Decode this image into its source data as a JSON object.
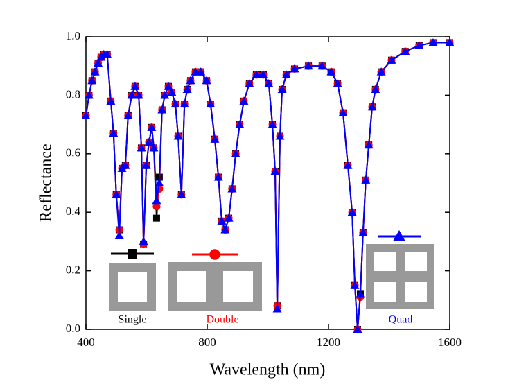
{
  "chart_data": {
    "type": "line",
    "xlabel": "Wavelength (nm)",
    "ylabel": "Reflectance",
    "x": [
      400,
      410,
      420,
      430,
      440,
      450,
      459,
      470,
      482,
      491,
      500,
      510,
      519,
      530,
      539,
      551,
      562,
      574,
      583,
      590,
      599,
      608,
      617,
      624,
      633,
      642,
      651,
      660,
      672,
      683,
      695,
      704,
      715,
      725,
      734,
      745,
      761,
      779,
      798,
      811,
      825,
      837,
      848,
      859,
      871,
      882,
      894,
      907,
      921,
      939,
      962,
      985,
      1003,
      1015,
      1024,
      1031,
      1040,
      1047,
      1061,
      1088,
      1134,
      1179,
      1209,
      1230,
      1248,
      1264,
      1278,
      1287,
      1296,
      1305,
      1314,
      1323,
      1333,
      1344,
      1355,
      1374,
      1408,
      1453,
      1499,
      1545,
      1600
    ],
    "series": [
      {
        "name": "Single",
        "color": "#000000",
        "marker": "square",
        "values": [
          0.73,
          0.8,
          0.85,
          0.88,
          0.91,
          0.93,
          0.94,
          0.94,
          0.78,
          0.67,
          0.46,
          0.34,
          0.55,
          0.56,
          0.73,
          0.8,
          0.83,
          0.8,
          0.62,
          0.29,
          0.56,
          0.64,
          0.69,
          0.62,
          0.38,
          0.52,
          0.75,
          0.8,
          0.83,
          0.81,
          0.77,
          0.66,
          0.46,
          0.77,
          0.82,
          0.85,
          0.88,
          0.88,
          0.85,
          0.77,
          0.65,
          0.52,
          0.37,
          0.34,
          0.38,
          0.48,
          0.6,
          0.7,
          0.78,
          0.84,
          0.87,
          0.87,
          0.84,
          0.7,
          0.54,
          0.08,
          0.66,
          0.82,
          0.87,
          0.89,
          0.9,
          0.9,
          0.88,
          0.84,
          0.74,
          0.56,
          0.4,
          0.15,
          0.0,
          0.12,
          0.33,
          0.51,
          0.63,
          0.76,
          0.82,
          0.88,
          0.92,
          0.95,
          0.97,
          0.98,
          0.98
        ]
      },
      {
        "name": "Double",
        "color": "#ff0000",
        "marker": "circle",
        "values": [
          0.73,
          0.8,
          0.85,
          0.88,
          0.91,
          0.93,
          0.94,
          0.94,
          0.78,
          0.67,
          0.46,
          0.34,
          0.55,
          0.56,
          0.73,
          0.8,
          0.83,
          0.8,
          0.62,
          0.29,
          0.56,
          0.64,
          0.69,
          0.62,
          0.42,
          0.48,
          0.75,
          0.8,
          0.83,
          0.81,
          0.77,
          0.66,
          0.46,
          0.77,
          0.82,
          0.85,
          0.88,
          0.88,
          0.85,
          0.77,
          0.65,
          0.52,
          0.37,
          0.34,
          0.38,
          0.48,
          0.6,
          0.7,
          0.78,
          0.84,
          0.87,
          0.87,
          0.84,
          0.7,
          0.54,
          0.08,
          0.66,
          0.82,
          0.87,
          0.89,
          0.9,
          0.9,
          0.88,
          0.84,
          0.74,
          0.56,
          0.4,
          0.15,
          0.0,
          0.11,
          0.33,
          0.51,
          0.63,
          0.76,
          0.82,
          0.88,
          0.92,
          0.95,
          0.97,
          0.98,
          0.98
        ]
      },
      {
        "name": "Quad",
        "color": "#0000ff",
        "marker": "triangle",
        "values": [
          0.73,
          0.8,
          0.85,
          0.88,
          0.91,
          0.93,
          0.94,
          0.94,
          0.78,
          0.67,
          0.46,
          0.32,
          0.55,
          0.56,
          0.73,
          0.8,
          0.83,
          0.8,
          0.62,
          0.3,
          0.56,
          0.64,
          0.69,
          0.62,
          0.44,
          0.5,
          0.75,
          0.8,
          0.83,
          0.81,
          0.77,
          0.66,
          0.46,
          0.77,
          0.82,
          0.85,
          0.88,
          0.88,
          0.85,
          0.77,
          0.65,
          0.52,
          0.37,
          0.34,
          0.38,
          0.48,
          0.6,
          0.7,
          0.78,
          0.84,
          0.87,
          0.87,
          0.84,
          0.7,
          0.54,
          0.07,
          0.66,
          0.82,
          0.87,
          0.89,
          0.9,
          0.9,
          0.88,
          0.84,
          0.74,
          0.56,
          0.4,
          0.15,
          0.0,
          0.12,
          0.33,
          0.51,
          0.63,
          0.76,
          0.82,
          0.88,
          0.92,
          0.95,
          0.97,
          0.98,
          0.98
        ]
      }
    ],
    "xlim": [
      400,
      1600
    ],
    "xticks": [
      400,
      800,
      1200,
      1600
    ],
    "ylim": [
      0,
      1
    ],
    "yticks": [
      {
        "value": 0,
        "label": "0.0"
      },
      0.2,
      0.4,
      0.6,
      0.8,
      {
        "value": 1,
        "label": "1.0"
      }
    ]
  }
}
